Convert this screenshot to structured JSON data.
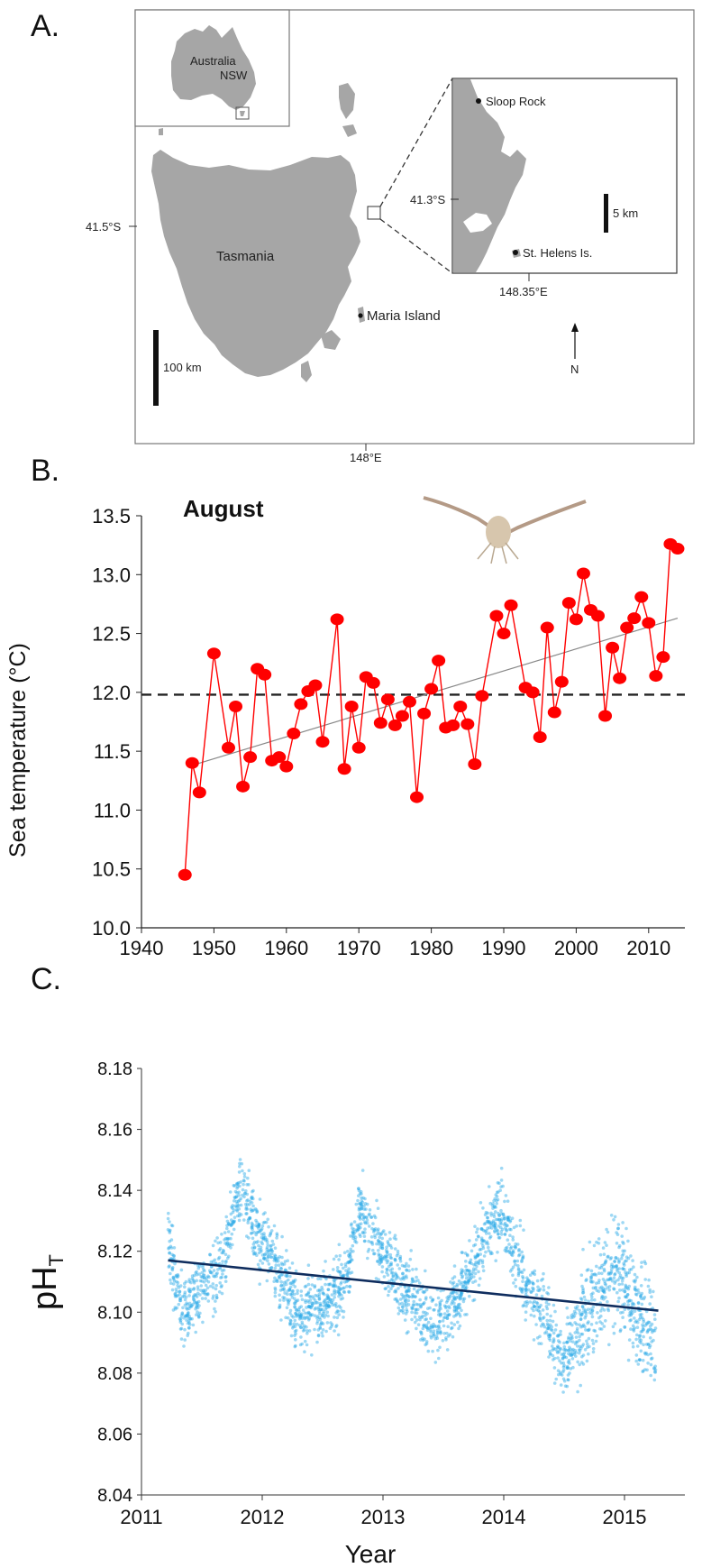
{
  "panels": {
    "a": "A.",
    "b": "B.",
    "c": "C."
  },
  "map": {
    "inset_labels": [
      "Australia",
      "NSW"
    ],
    "tasmania": "Tasmania",
    "maria_island": "Maria Island",
    "sloop_rock": "Sloop Rock",
    "st_helens": "St. Helens Is.",
    "lat_main": "41.5°S",
    "lon_main": "148°E",
    "lat_zoom": "41.3°S",
    "lon_zoom": "148.35°E",
    "scale_main": "100 km",
    "scale_zoom": "5 km",
    "north": "N",
    "colors": {
      "land": "#a6a6a6",
      "frame": "#444444"
    }
  },
  "chart_data": [
    {
      "type": "scatter",
      "title": "August",
      "xlabel": "",
      "ylabel": "Sea temperature (°C)",
      "xlim": [
        1940,
        2015
      ],
      "ylim": [
        10.0,
        13.5
      ],
      "xticks": [
        "1940",
        "1950",
        "1960",
        "1970",
        "1980",
        "1990",
        "2000",
        "2010"
      ],
      "yticks": [
        "10.0",
        "10.5",
        "11.0",
        "11.5",
        "12.0",
        "12.5",
        "13.0",
        "13.5"
      ],
      "series": [
        {
          "style": "line+markers",
          "color": "#ff0000",
          "x": [
            1946,
            1947,
            1948,
            1950,
            1952,
            1953,
            1954,
            1955,
            1956,
            1957,
            1958,
            1959,
            1960,
            1961,
            1962,
            1963,
            1964,
            1965,
            1967,
            1968,
            1969,
            1970,
            1971,
            1972,
            1973,
            1974,
            1975,
            1976,
            1977,
            1978,
            1979,
            1980,
            1981,
            1982,
            1983,
            1984,
            1985,
            1986,
            1987,
            1989,
            1990,
            1991,
            1993,
            1994,
            1995,
            1996,
            1997,
            1998,
            1999,
            2000,
            2001,
            2002,
            2003,
            2004,
            2005,
            2006,
            2007,
            2008,
            2009,
            2010,
            2011,
            2012,
            2013,
            2014
          ],
          "y": [
            10.45,
            11.4,
            11.15,
            12.33,
            11.53,
            11.88,
            11.2,
            11.45,
            12.2,
            12.15,
            11.42,
            11.45,
            11.37,
            11.65,
            11.9,
            12.01,
            12.06,
            11.58,
            12.62,
            11.35,
            11.88,
            11.53,
            12.13,
            12.08,
            11.74,
            11.94,
            11.72,
            11.8,
            11.92,
            11.11,
            11.82,
            12.03,
            12.27,
            11.7,
            11.72,
            11.88,
            11.73,
            11.39,
            11.97,
            12.65,
            12.5,
            12.74,
            12.04,
            12.0,
            11.62,
            12.55,
            11.83,
            12.09,
            12.76,
            12.62,
            13.01,
            12.7,
            12.65,
            11.8,
            12.38,
            12.12,
            12.55,
            12.63,
            12.81,
            12.59,
            12.14,
            12.3,
            13.26,
            13.22
          ]
        }
      ],
      "reference_line": {
        "y": 11.98,
        "style": "dashed",
        "color": "#222222"
      },
      "trend": {
        "x": [
          1947,
          2014
        ],
        "y": [
          11.38,
          12.63
        ],
        "color": "#888888"
      },
      "grid": false
    },
    {
      "type": "scatter",
      "title": "",
      "xlabel": "Year",
      "ylabel": "pH_T",
      "ylabel_main": "pH",
      "ylabel_sub": "T",
      "xlim": [
        2011.0,
        2015.5
      ],
      "ylim": [
        8.04,
        8.18
      ],
      "xticks": [
        "2011",
        "2012",
        "2013",
        "2014",
        "2015"
      ],
      "yticks": [
        "8.04",
        "8.06",
        "8.08",
        "8.10",
        "8.12",
        "8.14",
        "8.16",
        "8.18"
      ],
      "series": [
        {
          "color": "#29a9e6",
          "mean_curve": {
            "x": [
              2011.22,
              2011.27,
              2011.32,
              2011.38,
              2011.45,
              2011.55,
              2011.62,
              2011.7,
              2011.78,
              2011.84,
              2011.92,
              2012.0,
              2012.1,
              2012.2,
              2012.32,
              2012.42,
              2012.52,
              2012.62,
              2012.72,
              2012.8,
              2012.88,
              2012.96,
              2013.05,
              2013.15,
              2013.25,
              2013.35,
              2013.42,
              2013.5,
              2013.6,
              2013.7,
              2013.8,
              2013.9,
              2013.98,
              2014.06,
              2014.16,
              2014.26,
              2014.36,
              2014.42,
              2014.5,
              2014.6,
              2014.7,
              2014.78,
              2014.86,
              2014.94,
              2015.02,
              2015.1,
              2015.18,
              2015.26
            ],
            "y": [
              8.128,
              8.112,
              8.1,
              8.101,
              8.106,
              8.11,
              8.112,
              8.12,
              8.136,
              8.14,
              8.128,
              8.122,
              8.117,
              8.108,
              8.098,
              8.1,
              8.104,
              8.106,
              8.115,
              8.136,
              8.128,
              8.122,
              8.115,
              8.108,
              8.104,
              8.1,
              8.094,
              8.098,
              8.104,
              8.112,
              8.12,
              8.13,
              8.132,
              8.122,
              8.112,
              8.104,
              8.1,
              8.088,
              8.084,
              8.094,
              8.1,
              8.108,
              8.112,
              8.116,
              8.11,
              8.1,
              8.094,
              8.09
            ],
            "spread": 0.01
          }
        }
      ],
      "trend": {
        "x": [
          2011.22,
          2015.28
        ],
        "y": [
          8.117,
          8.1005
        ],
        "color": "#0f2d5e"
      },
      "grid": false
    }
  ]
}
